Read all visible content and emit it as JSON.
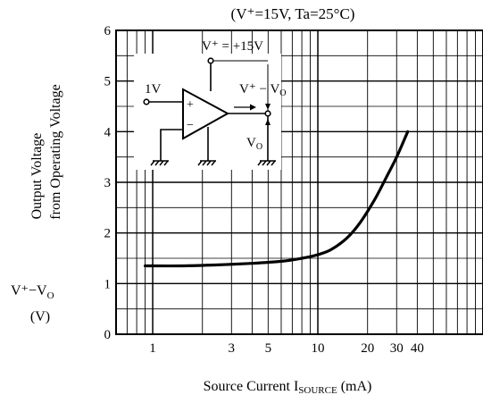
{
  "chart_data": {
    "type": "line",
    "title": "(V⁺=15V, Ta=25°C)",
    "xlabel": {
      "prefix": "Source Current ",
      "symbol": "I",
      "subscript": "SOURCE",
      "unit": " (mA)"
    },
    "ylabel": {
      "line1": "Output Voltage",
      "line2": "from Operating Voltage",
      "symbol": "V⁺−V",
      "subscript": "O",
      "unit": "(V)"
    },
    "x_scale": "log",
    "xlim": [
      0.6,
      100
    ],
    "ylim": [
      0,
      6
    ],
    "x_ticks": [
      "1",
      "3",
      "5",
      "10",
      "20",
      "30",
      "40"
    ],
    "y_ticks": [
      "0",
      "1",
      "2",
      "3",
      "4",
      "5",
      "6"
    ],
    "grid": true,
    "series": [
      {
        "color": "#000000",
        "points": [
          {
            "x": 0.9,
            "y": 1.35
          },
          {
            "x": 1.5,
            "y": 1.35
          },
          {
            "x": 2.5,
            "y": 1.37
          },
          {
            "x": 4,
            "y": 1.4
          },
          {
            "x": 6,
            "y": 1.44
          },
          {
            "x": 8,
            "y": 1.5
          },
          {
            "x": 10,
            "y": 1.57
          },
          {
            "x": 12,
            "y": 1.67
          },
          {
            "x": 15,
            "y": 1.9
          },
          {
            "x": 18,
            "y": 2.2
          },
          {
            "x": 22,
            "y": 2.65
          },
          {
            "x": 26,
            "y": 3.1
          },
          {
            "x": 30,
            "y": 3.5
          },
          {
            "x": 35,
            "y": 4.0
          }
        ]
      }
    ]
  },
  "schematic": {
    "supply_label": "V⁺ = +15V",
    "input_label": "1V",
    "diff_label": "V⁺ − V",
    "diff_subscript": "O",
    "out_label": "V",
    "out_subscript": "O",
    "plus_sign": "+",
    "minus_sign": "−"
  }
}
